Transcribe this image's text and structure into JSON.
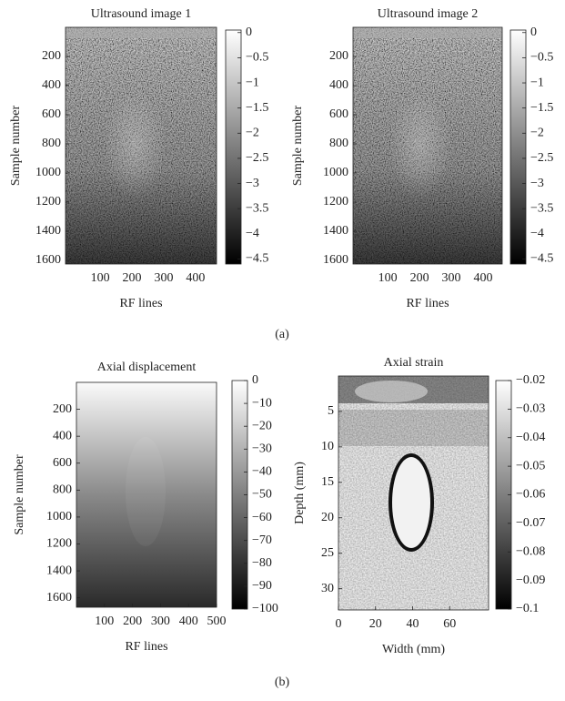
{
  "chart_data": [
    {
      "type": "image",
      "title": "Ultrasound image 1",
      "x_label": "RF lines",
      "y_label": "Sample number",
      "xlim": [
        -9,
        466
      ],
      "ylim": [
        0,
        1625
      ],
      "y_inverted": true,
      "xticks": [
        100,
        200,
        300,
        400
      ],
      "yticks": [
        200,
        400,
        600,
        800,
        1000,
        1200,
        1400,
        1600
      ],
      "clim": [
        -4.6,
        0.05
      ],
      "cticks": [
        0,
        {
          "value": -0.5,
          "label": "−0.5"
        },
        {
          "value": -1,
          "label": "−1"
        },
        {
          "value": -1.5,
          "label": "−1.5"
        },
        {
          "value": -2,
          "label": "−2"
        },
        {
          "value": -2.5,
          "label": "−2.5"
        },
        {
          "value": -3,
          "label": "−3"
        },
        {
          "value": -3.5,
          "label": "−3.5"
        },
        {
          "value": -4,
          "label": "−4"
        },
        {
          "value": -4.5,
          "label": "−4.5"
        }
      ]
    },
    {
      "type": "image",
      "title": "Ultrasound image 2",
      "x_label": "RF lines",
      "y_label": "Sample number",
      "xlim": [
        -9,
        460
      ],
      "ylim": [
        0,
        1625
      ],
      "y_inverted": true,
      "xticks": [
        100,
        200,
        300,
        400
      ],
      "yticks": [
        200,
        400,
        600,
        800,
        1000,
        1200,
        1400,
        1600
      ],
      "clim": [
        -4.6,
        0.05
      ],
      "cticks": [
        0,
        {
          "value": -0.5,
          "label": "−0.5"
        },
        {
          "value": -1,
          "label": "−1"
        },
        {
          "value": -1.5,
          "label": "−1.5"
        },
        {
          "value": -2,
          "label": "−2"
        },
        {
          "value": -2.5,
          "label": "−2.5"
        },
        {
          "value": -3,
          "label": "−3"
        },
        {
          "value": -3.5,
          "label": "−3.5"
        },
        {
          "value": -4,
          "label": "−4"
        },
        {
          "value": -4.5,
          "label": "−4.5"
        }
      ]
    },
    {
      "type": "image",
      "title": "Axial displacement",
      "x_label": "RF lines",
      "y_label": "Sample number",
      "xlim": [
        0,
        500
      ],
      "ylim": [
        0,
        1670
      ],
      "y_inverted": true,
      "xticks": [
        100,
        200,
        300,
        400,
        500
      ],
      "yticks": [
        200,
        400,
        600,
        800,
        1000,
        1200,
        1400,
        1600
      ],
      "clim": [
        -100,
        0
      ],
      "cticks": [
        0,
        {
          "value": -10,
          "label": "−10"
        },
        {
          "value": -20,
          "label": "−20"
        },
        {
          "value": -30,
          "label": "−30"
        },
        {
          "value": -40,
          "label": "−40"
        },
        {
          "value": -50,
          "label": "−50"
        },
        {
          "value": -60,
          "label": "−60"
        },
        {
          "value": -70,
          "label": "−70"
        },
        {
          "value": -80,
          "label": "−80"
        },
        {
          "value": -90,
          "label": "−90"
        },
        {
          "value": -100,
          "label": "−100"
        }
      ]
    },
    {
      "type": "image",
      "title": "Axial strain",
      "x_label": "Width (mm)",
      "y_label": "Depth (mm)",
      "xlim": [
        0,
        81
      ],
      "ylim": [
        0,
        33
      ],
      "y_inverted": true,
      "xticks": [
        0,
        20,
        40,
        60
      ],
      "yticks": [
        5,
        10,
        15,
        20,
        25,
        30
      ],
      "clim": [
        -0.1,
        -0.02
      ],
      "cticks": [
        {
          "value": -0.02,
          "label": "−0.02"
        },
        {
          "value": -0.03,
          "label": "−0.03"
        },
        {
          "value": -0.04,
          "label": "−0.04"
        },
        {
          "value": -0.05,
          "label": "−0.05"
        },
        {
          "value": -0.06,
          "label": "−0.06"
        },
        {
          "value": -0.07,
          "label": "−0.07"
        },
        {
          "value": -0.08,
          "label": "−0.08"
        },
        {
          "value": -0.09,
          "label": "−0.09"
        },
        {
          "value": -0.1,
          "label": "−0.1"
        }
      ]
    }
  ],
  "panel_labels": [
    "(a)",
    "(b)"
  ]
}
